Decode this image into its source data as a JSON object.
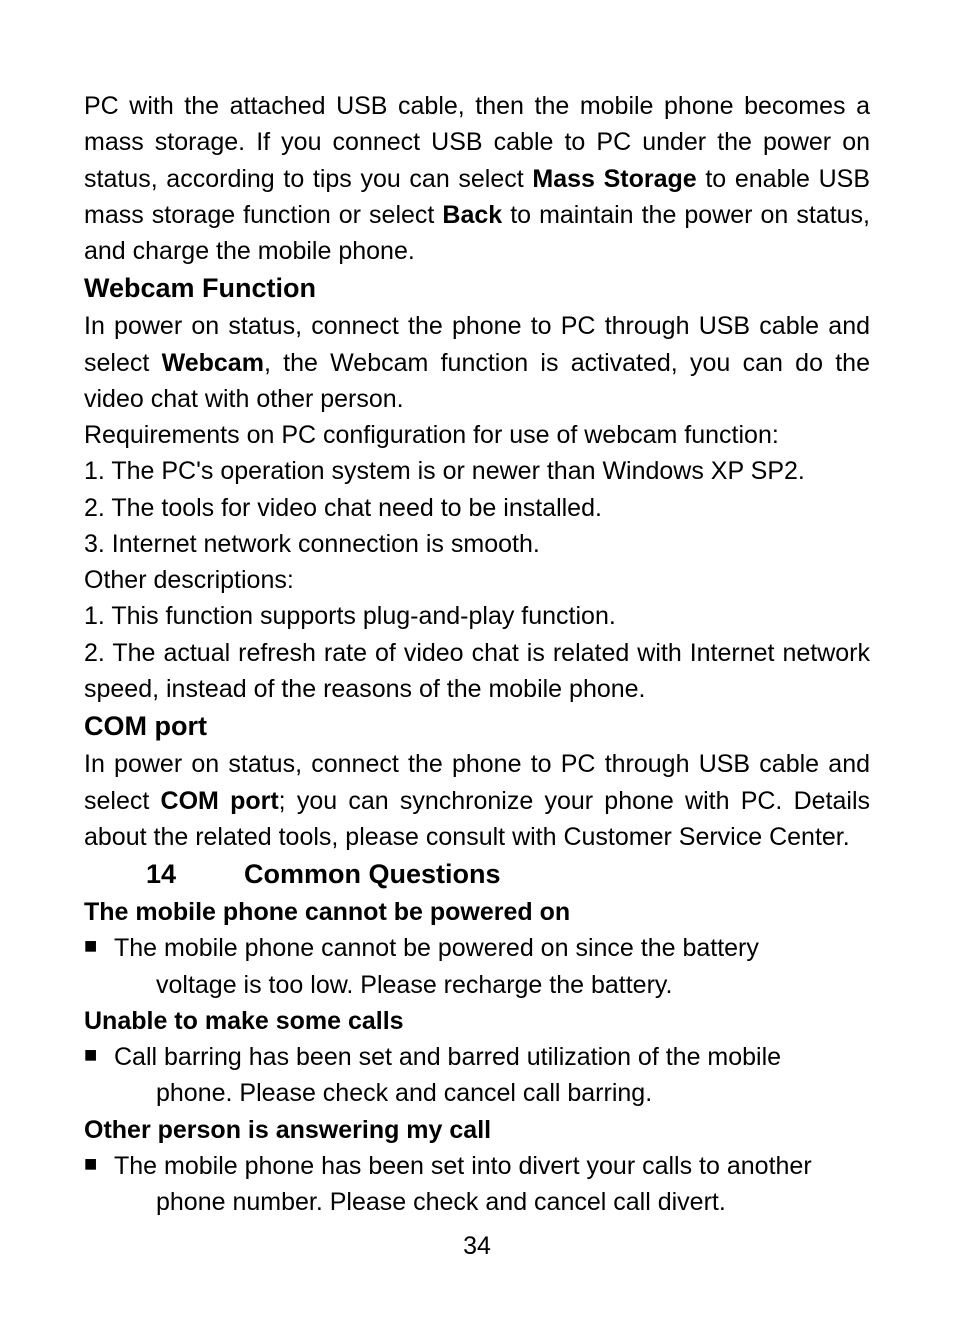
{
  "intro": {
    "pre1": "PC with the attached USB cable, then the mobile phone becomes a mass storage. If you connect USB cable to PC under the power on status, according to tips you can select ",
    "bold1": "Mass Storage",
    "mid1": " to enable USB mass storage function or select ",
    "bold2": "Back",
    "post1": " to maintain the power on status, and charge the mobile phone."
  },
  "webcam": {
    "heading": "Webcam Function",
    "p1_pre": "In power on status, connect the phone to PC through USB cable and select ",
    "p1_bold": "Webcam",
    "p1_post": ", the Webcam function is activated, you can do the video chat with other person.",
    "req_intro": "Requirements on PC configuration for use of webcam function:",
    "req1": "1. The PC's operation system is or newer than Windows XP SP2.",
    "req2": "2. The tools for video chat need to be installed.",
    "req3": "3. Internet network connection is smooth.",
    "other_intro": "Other descriptions:",
    "other1": "1. This function supports plug-and-play function.",
    "other2": "2. The actual refresh rate of video chat is related with Internet network speed, instead of the reasons of the mobile phone."
  },
  "comport": {
    "heading": "COM port",
    "p1_pre": "In power on status, connect the phone to PC through USB cable and select ",
    "p1_bold": "COM port",
    "p1_post": "; you can synchronize your phone with PC. Details about the related tools, please consult with Customer Service Center."
  },
  "chapter": {
    "num": "14",
    "title": "Common Questions"
  },
  "q1": {
    "heading": "The mobile phone cannot be powered on",
    "bullet_line1": "The mobile phone cannot be powered on since the battery",
    "bullet_line2": "voltage is too low. Please recharge the battery."
  },
  "q2": {
    "heading": "Unable to make some calls",
    "bullet_line1": "Call barring has been set and barred utilization of the mobile",
    "bullet_line2": "phone. Please check and cancel call barring."
  },
  "q3": {
    "heading": "Other person is answering my call",
    "bullet_line1": "The mobile phone has been set into divert your calls to another",
    "bullet_line2": "phone number. Please check and cancel call divert."
  },
  "page_number": "34",
  "bullet_char": "■"
}
